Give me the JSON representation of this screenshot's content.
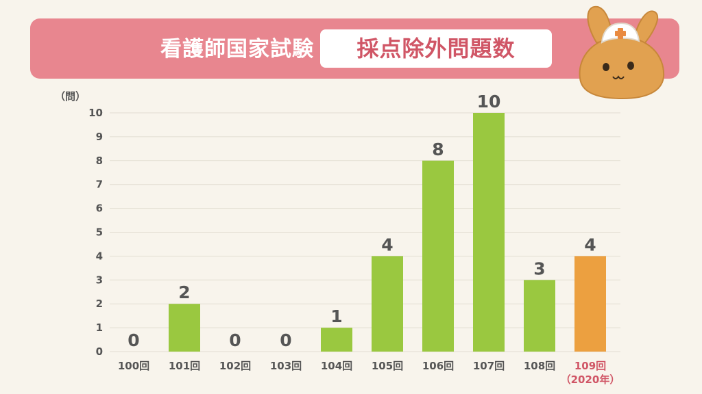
{
  "banner": {
    "title": "看護師国家試験",
    "subtitle": "採点除外問題数"
  },
  "colors": {
    "bar": "#9ac840",
    "highlight": "#eca040",
    "highlight_label": "#d05666",
    "grid": "#e2ddd2",
    "text": "#555555",
    "banner": "#e8868f"
  },
  "mascot": {
    "icon": "nurse-rabbit-mascot-icon"
  },
  "chart_data": {
    "type": "bar",
    "unit_label": "（問）",
    "categories": [
      "100回",
      "101回",
      "102回",
      "103回",
      "104回",
      "105回",
      "106回",
      "107回",
      "108回",
      "109回"
    ],
    "highlight_note": "（2020年）",
    "highlight_index": 9,
    "values": [
      0,
      2,
      0,
      0,
      1,
      4,
      8,
      10,
      3,
      4
    ],
    "ylim": [
      0,
      10
    ],
    "yticks": [
      "0",
      "1",
      "2",
      "3",
      "4",
      "5",
      "6",
      "7",
      "8",
      "9",
      "10"
    ],
    "grid": true
  }
}
